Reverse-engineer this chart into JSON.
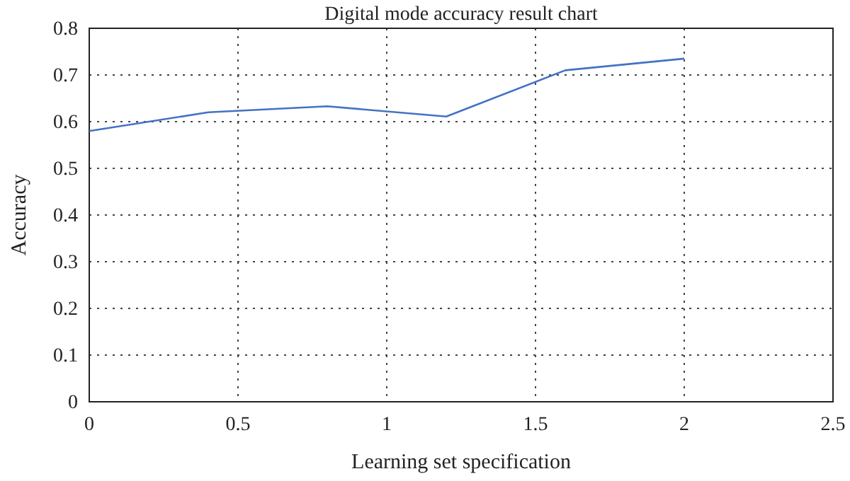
{
  "chart_data": {
    "type": "line",
    "title": "Digital mode accuracy result chart",
    "xlabel": "Learning set specification",
    "ylabel": "Accuracy",
    "x": [
      0,
      0.4,
      0.8,
      1.2,
      1.6,
      2.0
    ],
    "series": [
      {
        "color": "#4472c4",
        "values": [
          0.58,
          0.62,
          0.633,
          0.611,
          0.71,
          0.735
        ]
      }
    ],
    "xlim": [
      0,
      2.5
    ],
    "xticks": [
      0,
      0.5,
      1,
      1.5,
      2,
      2.5
    ],
    "ylim": [
      0,
      0.8
    ],
    "yticks": [
      0,
      0.1,
      0.2,
      0.3,
      0.4,
      0.5,
      0.6,
      0.7,
      0.8
    ],
    "grid": true,
    "marker": "none",
    "line_style": "solid"
  }
}
